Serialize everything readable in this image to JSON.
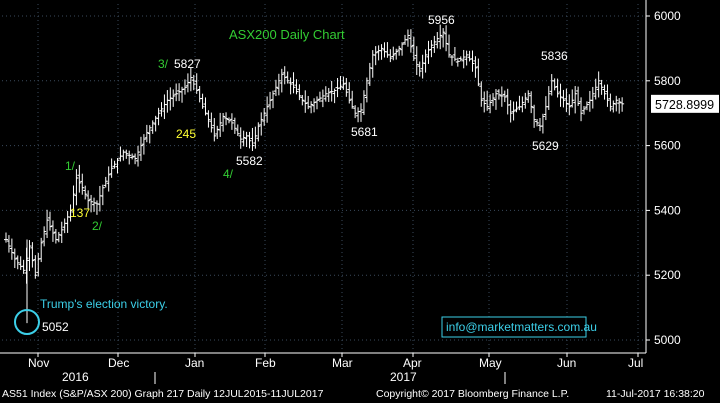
{
  "chart_data": {
    "type": "bar",
    "subtype": "ohlc",
    "title": "ASX200 Daily Chart",
    "y_axis": {
      "ticks": [
        5000,
        5200,
        5400,
        5600,
        5800,
        6000
      ],
      "ylim": [
        4960,
        6040
      ],
      "side": "right"
    },
    "x_axis": {
      "month_labels": [
        "Nov",
        "Dec",
        "Jan",
        "Feb",
        "Mar",
        "Apr",
        "May",
        "Jun",
        "Jul"
      ],
      "year_labels": [
        "2016",
        "2017"
      ]
    },
    "last_price": "5728.8999",
    "series_path": [
      {
        "d": 0,
        "v": 5310
      },
      {
        "d": 3,
        "v": 5250
      },
      {
        "d": 6,
        "v": 5215
      },
      {
        "d": 8,
        "v": 5290
      },
      {
        "d": 10,
        "v": 5200
      },
      {
        "d": 12,
        "v": 5300
      },
      {
        "d": 14,
        "v": 5370
      },
      {
        "d": 17,
        "v": 5310
      },
      {
        "d": 19,
        "v": 5340
      },
      {
        "d": 22,
        "v": 5400
      },
      {
        "d": 24,
        "v": 5500
      },
      {
        "d": 26,
        "v": 5470
      },
      {
        "d": 28,
        "v": 5430
      },
      {
        "d": 31,
        "v": 5420
      },
      {
        "d": 33,
        "v": 5470
      },
      {
        "d": 36,
        "v": 5530
      },
      {
        "d": 40,
        "v": 5580
      },
      {
        "d": 44,
        "v": 5560
      },
      {
        "d": 48,
        "v": 5640
      },
      {
        "d": 52,
        "v": 5700
      },
      {
        "d": 55,
        "v": 5740
      },
      {
        "d": 58,
        "v": 5760
      },
      {
        "d": 61,
        "v": 5780
      },
      {
        "d": 63,
        "v": 5810
      },
      {
        "d": 65,
        "v": 5770
      },
      {
        "d": 67,
        "v": 5720
      },
      {
        "d": 69,
        "v": 5680
      },
      {
        "d": 71,
        "v": 5630
      },
      {
        "d": 74,
        "v": 5690
      },
      {
        "d": 77,
        "v": 5670
      },
      {
        "d": 80,
        "v": 5620
      },
      {
        "d": 82,
        "v": 5630
      },
      {
        "d": 84,
        "v": 5600
      },
      {
        "d": 86,
        "v": 5660
      },
      {
        "d": 89,
        "v": 5720
      },
      {
        "d": 92,
        "v": 5780
      },
      {
        "d": 94,
        "v": 5820
      },
      {
        "d": 96,
        "v": 5800
      },
      {
        "d": 98,
        "v": 5780
      },
      {
        "d": 101,
        "v": 5740
      },
      {
        "d": 103,
        "v": 5720
      },
      {
        "d": 106,
        "v": 5740
      },
      {
        "d": 109,
        "v": 5760
      },
      {
        "d": 112,
        "v": 5770
      },
      {
        "d": 115,
        "v": 5790
      },
      {
        "d": 117,
        "v": 5740
      },
      {
        "d": 119,
        "v": 5700
      },
      {
        "d": 121,
        "v": 5710
      },
      {
        "d": 123,
        "v": 5800
      },
      {
        "d": 125,
        "v": 5880
      },
      {
        "d": 128,
        "v": 5900
      },
      {
        "d": 131,
        "v": 5870
      },
      {
        "d": 134,
        "v": 5900
      },
      {
        "d": 137,
        "v": 5940
      },
      {
        "d": 139,
        "v": 5870
      },
      {
        "d": 141,
        "v": 5830
      },
      {
        "d": 143,
        "v": 5880
      },
      {
        "d": 145,
        "v": 5910
      },
      {
        "d": 147,
        "v": 5930
      },
      {
        "d": 149,
        "v": 5950
      },
      {
        "d": 151,
        "v": 5880
      },
      {
        "d": 154,
        "v": 5860
      },
      {
        "d": 157,
        "v": 5880
      },
      {
        "d": 160,
        "v": 5840
      },
      {
        "d": 162,
        "v": 5740
      },
      {
        "d": 164,
        "v": 5720
      },
      {
        "d": 167,
        "v": 5760
      },
      {
        "d": 170,
        "v": 5750
      },
      {
        "d": 172,
        "v": 5700
      },
      {
        "d": 175,
        "v": 5720
      },
      {
        "d": 178,
        "v": 5760
      },
      {
        "d": 180,
        "v": 5680
      },
      {
        "d": 182,
        "v": 5660
      },
      {
        "d": 184,
        "v": 5720
      },
      {
        "d": 186,
        "v": 5800
      },
      {
        "d": 188,
        "v": 5760
      },
      {
        "d": 190,
        "v": 5740
      },
      {
        "d": 192,
        "v": 5720
      },
      {
        "d": 194,
        "v": 5760
      },
      {
        "d": 196,
        "v": 5700
      },
      {
        "d": 199,
        "v": 5740
      },
      {
        "d": 202,
        "v": 5800
      },
      {
        "d": 204,
        "v": 5760
      },
      {
        "d": 206,
        "v": 5720
      },
      {
        "d": 208,
        "v": 5740
      },
      {
        "d": 210,
        "v": 5728.9
      }
    ],
    "annotations": [
      {
        "text": "5052",
        "color": "#ffffff"
      },
      {
        "text": "1/",
        "color": "#33cc33"
      },
      {
        "text": "137",
        "color": "#ffff33"
      },
      {
        "text": "2/",
        "color": "#33cc33"
      },
      {
        "text": "3/",
        "color": "#33cc33"
      },
      {
        "text": "5827",
        "color": "#ffffff"
      },
      {
        "text": "245",
        "color": "#ffff33"
      },
      {
        "text": "4/",
        "color": "#33cc33"
      },
      {
        "text": "5582",
        "color": "#ffffff"
      },
      {
        "text": "5681",
        "color": "#ffffff"
      },
      {
        "text": "5956",
        "color": "#ffffff"
      },
      {
        "text": "5836",
        "color": "#ffffff"
      },
      {
        "text": "5629",
        "color": "#ffffff"
      }
    ],
    "event_label": "Trump's election victory.",
    "watermark": "info@marketmatters.com.au",
    "colors": {
      "background": "#000000",
      "price": "#ffffff",
      "title": "#33cc33",
      "event": "#3ccfe8",
      "grid": "#3a4a5c"
    }
  },
  "footer": {
    "left": "AS51 Index (S&P/ASX 200) Graph 217  Daily 12JUL2015-11JUL2017",
    "middle": "Copyright© 2017 Bloomberg Finance L.P.",
    "right": "11-Jul-2017 16:38:20"
  }
}
